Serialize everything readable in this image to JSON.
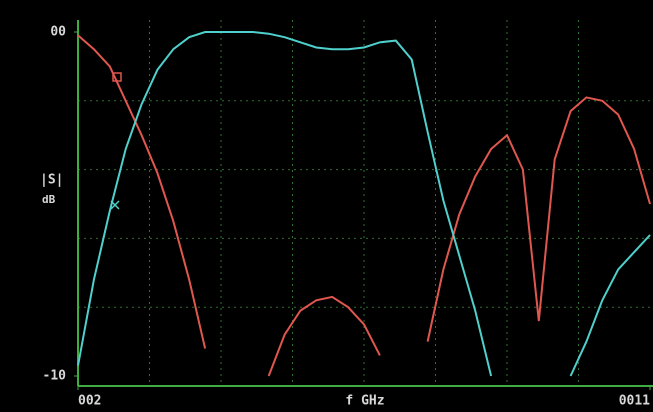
{
  "chart_data": {
    "type": "line",
    "ylabel": "|S|",
    "yunit": "dB",
    "xlabel": "f GHz",
    "xlim": [
      2,
      11
    ],
    "xticks": [
      {
        "value": 2,
        "label": "002"
      },
      {
        "value": 11,
        "label": "0011"
      }
    ],
    "ylim": [
      -10,
      0
    ],
    "yticks": [
      {
        "value": -10,
        "label": "-10"
      },
      {
        "value": 0,
        "label": "00"
      }
    ],
    "grid": true,
    "x": [
      2,
      2.25,
      2.5,
      2.75,
      3,
      3.25,
      3.5,
      3.75,
      4,
      4.25,
      4.5,
      4.75,
      5,
      5.25,
      5.5,
      5.75,
      6,
      6.25,
      6.5,
      6.75,
      7,
      7.25,
      7.5,
      7.75,
      8,
      8.25,
      8.5,
      8.75,
      9,
      9.25,
      9.5,
      9.75,
      10,
      10.25,
      10.5,
      10.75,
      11
    ],
    "series": [
      {
        "color": "#e0574f",
        "values": [
          -0.1,
          -0.5,
          -1.0,
          -2.0,
          -3.0,
          -4.1,
          -5.5,
          -7.2,
          -9.2,
          null,
          null,
          null,
          -10,
          -8.8,
          -8.1,
          -7.8,
          -7.7,
          -8.0,
          -8.5,
          -9.4,
          null,
          null,
          -9.0,
          -6.9,
          -5.3,
          -4.2,
          -3.4,
          -3.0,
          -4.0,
          -8.4,
          -3.7,
          -2.3,
          -1.9,
          -2.0,
          -2.4,
          -3.4,
          -5.0
        ]
      },
      {
        "color": "#4fd0cc",
        "values": [
          -9.7,
          -7.2,
          -5.2,
          -3.4,
          -2.1,
          -1.1,
          -0.5,
          -0.15,
          0,
          0,
          0,
          0,
          -0.05,
          -0.15,
          -0.3,
          -0.45,
          -0.5,
          -0.5,
          -0.45,
          -0.3,
          -0.25,
          -0.8,
          -2.9,
          -4.9,
          -6.5,
          -8.1,
          -10,
          null,
          null,
          null,
          null,
          -10,
          -9.0,
          -7.8,
          -6.9,
          -6.4,
          -5.9
        ]
      }
    ]
  }
}
